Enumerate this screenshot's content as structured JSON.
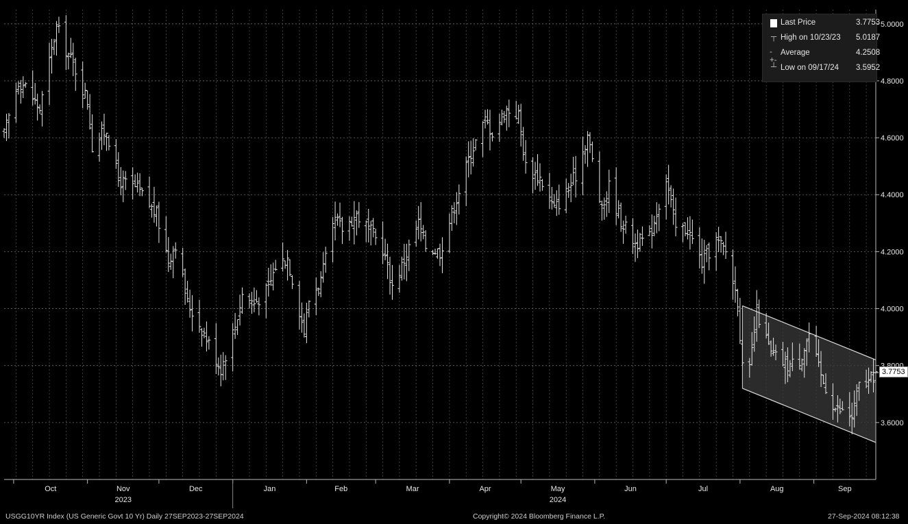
{
  "chart_data": {
    "type": "ohlc",
    "security": "USGG10YR Index (US Generic Govt 10 Yr)",
    "period": "Daily 27SEP2023-27SEP2024",
    "ylim": [
      3.4,
      5.05
    ],
    "y_ticks": [
      "5.0000",
      "4.8000",
      "4.6000",
      "4.4000",
      "4.2000",
      "4.0000",
      "3.8000",
      "3.6000"
    ],
    "months": [
      {
        "label": "Oct",
        "year": ""
      },
      {
        "label": "Nov",
        "year": "2023"
      },
      {
        "label": "Dec",
        "year": ""
      },
      {
        "label": "Jan",
        "year": ""
      },
      {
        "label": "Feb",
        "year": ""
      },
      {
        "label": "Mar",
        "year": ""
      },
      {
        "label": "Apr",
        "year": ""
      },
      {
        "label": "May",
        "year": "2024"
      },
      {
        "label": "Jun",
        "year": ""
      },
      {
        "label": "Jul",
        "year": ""
      },
      {
        "label": "Aug",
        "year": ""
      },
      {
        "label": "Sep",
        "year": ""
      }
    ],
    "close_anchors": [
      [
        "2023-09-27",
        4.61
      ],
      [
        "2023-10-03",
        4.8
      ],
      [
        "2023-10-06",
        4.78
      ],
      [
        "2023-10-12",
        4.7
      ],
      [
        "2023-10-19",
        4.99
      ],
      [
        "2023-10-23",
        4.91
      ],
      [
        "2023-10-27",
        4.84
      ],
      [
        "2023-11-01",
        4.73
      ],
      [
        "2023-11-03",
        4.57
      ],
      [
        "2023-11-09",
        4.63
      ],
      [
        "2023-11-14",
        4.45
      ],
      [
        "2023-11-22",
        4.42
      ],
      [
        "2023-11-30",
        4.33
      ],
      [
        "2023-12-05",
        4.17
      ],
      [
        "2023-12-08",
        4.23
      ],
      [
        "2023-12-13",
        4.02
      ],
      [
        "2023-12-19",
        3.93
      ],
      [
        "2023-12-27",
        3.79
      ],
      [
        "2024-01-02",
        3.94
      ],
      [
        "2024-01-05",
        4.05
      ],
      [
        "2024-01-10",
        4.02
      ],
      [
        "2024-01-16",
        4.07
      ],
      [
        "2024-01-19",
        4.15
      ],
      [
        "2024-01-24",
        4.18
      ],
      [
        "2024-01-31",
        3.92
      ],
      [
        "2024-02-02",
        4.03
      ],
      [
        "2024-02-07",
        4.1
      ],
      [
        "2024-02-13",
        4.31
      ],
      [
        "2024-02-16",
        4.28
      ],
      [
        "2024-02-22",
        4.33
      ],
      [
        "2024-02-28",
        4.27
      ],
      [
        "2024-03-04",
        4.21
      ],
      [
        "2024-03-08",
        4.08
      ],
      [
        "2024-03-12",
        4.15
      ],
      [
        "2024-03-19",
        4.3
      ],
      [
        "2024-03-22",
        4.22
      ],
      [
        "2024-03-28",
        4.2
      ],
      [
        "2024-04-03",
        4.36
      ],
      [
        "2024-04-10",
        4.55
      ],
      [
        "2024-04-16",
        4.66
      ],
      [
        "2024-04-19",
        4.62
      ],
      [
        "2024-04-25",
        4.7
      ],
      [
        "2024-04-30",
        4.68
      ],
      [
        "2024-05-03",
        4.5
      ],
      [
        "2024-05-09",
        4.46
      ],
      [
        "2024-05-15",
        4.35
      ],
      [
        "2024-05-21",
        4.42
      ],
      [
        "2024-05-24",
        4.47
      ],
      [
        "2024-05-29",
        4.61
      ],
      [
        "2024-06-04",
        4.34
      ],
      [
        "2024-06-07",
        4.43
      ],
      [
        "2024-06-12",
        4.31
      ],
      [
        "2024-06-18",
        4.23
      ],
      [
        "2024-06-24",
        4.25
      ],
      [
        "2024-07-01",
        4.46
      ],
      [
        "2024-07-05",
        4.28
      ],
      [
        "2024-07-10",
        4.28
      ],
      [
        "2024-07-16",
        4.16
      ],
      [
        "2024-07-22",
        4.24
      ],
      [
        "2024-07-26",
        4.2
      ],
      [
        "2024-07-31",
        4.03
      ],
      [
        "2024-08-02",
        3.79
      ],
      [
        "2024-08-05",
        3.78
      ],
      [
        "2024-08-08",
        3.99
      ],
      [
        "2024-08-14",
        3.84
      ],
      [
        "2024-08-21",
        3.8
      ],
      [
        "2024-08-26",
        3.82
      ],
      [
        "2024-08-30",
        3.91
      ],
      [
        "2024-09-04",
        3.76
      ],
      [
        "2024-09-10",
        3.65
      ],
      [
        "2024-09-17",
        3.62
      ],
      [
        "2024-09-20",
        3.73
      ],
      [
        "2024-09-24",
        3.74
      ],
      [
        "2024-09-27",
        3.7753
      ]
    ],
    "channel": {
      "upper": [
        [
          "2024-08-02",
          4.01
        ],
        [
          "2024-09-27",
          3.82
        ]
      ],
      "lower": [
        [
          "2024-08-02",
          3.72
        ],
        [
          "2024-09-27",
          3.53
        ]
      ]
    },
    "grid": true,
    "legend_placement": "top-right"
  },
  "legend": {
    "last_price": {
      "label": "Last Price",
      "value": "3.7753"
    },
    "high": {
      "label": "High on 10/23/23",
      "value": "5.0187"
    },
    "average": {
      "label": "Average",
      "value": "4.2508"
    },
    "low": {
      "label": "Low on 09/17/24",
      "value": "3.5952"
    }
  },
  "last_badge": "3.7753",
  "footer": {
    "left": "USGG10YR Index (US Generic Govt 10 Yr)  Daily 27SEP2023-27SEP2024",
    "center": "Copyright© 2024 Bloomberg Finance L.P.",
    "right": "27-Sep-2024 08:12:38"
  },
  "colors": {
    "background": "#000000",
    "bars": "#e8e8e8",
    "grid": "#7a7a7a",
    "channel_fill": "#3a3a3a"
  }
}
